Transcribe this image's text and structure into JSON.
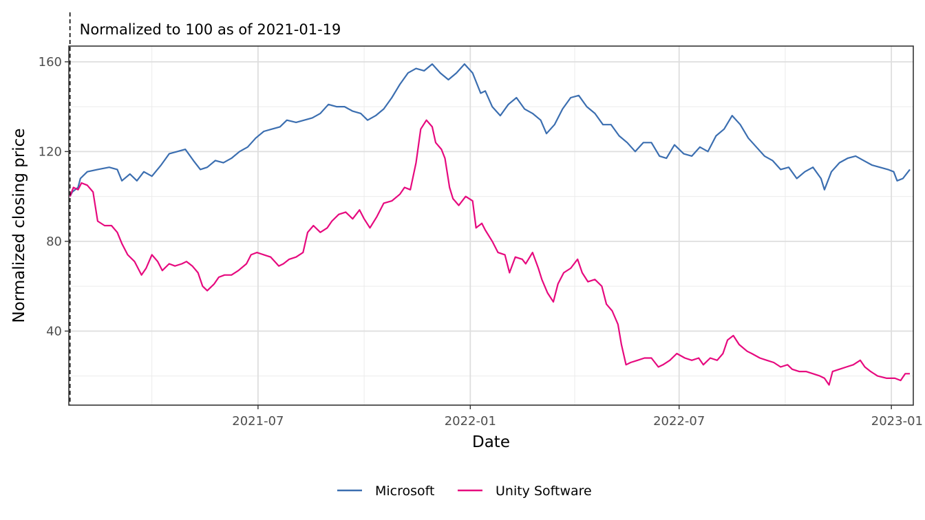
{
  "chart_data": {
    "type": "line",
    "title": "",
    "xlabel": "Date",
    "ylabel": "Normalized closing price",
    "annotation": {
      "text": "Normalized to 100 as of 2021-01-19",
      "x": "2021-01-19"
    },
    "xlim": [
      "2021-01-18",
      "2023-01-20"
    ],
    "ylim": [
      7,
      167
    ],
    "x_ticks": [
      {
        "label": "2021-07",
        "date": "2021-07-01"
      },
      {
        "label": "2022-01",
        "date": "2022-01-01"
      },
      {
        "label": "2022-07",
        "date": "2022-07-01"
      },
      {
        "label": "2023-01",
        "date": "2023-01-01"
      }
    ],
    "y_ticks": [
      40,
      80,
      120,
      160
    ],
    "grid": true,
    "legend": "bottom",
    "series": [
      {
        "name": "Microsoft",
        "color": "#3b6eb0",
        "points": [
          [
            "2021-01-19",
            100
          ],
          [
            "2021-01-21",
            102
          ],
          [
            "2021-01-26",
            104
          ],
          [
            "2021-01-28",
            108
          ],
          [
            "2021-02-03",
            111
          ],
          [
            "2021-02-12",
            112
          ],
          [
            "2021-02-22",
            113
          ],
          [
            "2021-03-01",
            112
          ],
          [
            "2021-03-05",
            107
          ],
          [
            "2021-03-12",
            110
          ],
          [
            "2021-03-18",
            107
          ],
          [
            "2021-03-24",
            111
          ],
          [
            "2021-03-31",
            109
          ],
          [
            "2021-04-08",
            114
          ],
          [
            "2021-04-15",
            119
          ],
          [
            "2021-04-22",
            120
          ],
          [
            "2021-04-29",
            121
          ],
          [
            "2021-05-06",
            116
          ],
          [
            "2021-05-12",
            112
          ],
          [
            "2021-05-18",
            113
          ],
          [
            "2021-05-25",
            116
          ],
          [
            "2021-06-01",
            115
          ],
          [
            "2021-06-08",
            117
          ],
          [
            "2021-06-15",
            120
          ],
          [
            "2021-06-22",
            122
          ],
          [
            "2021-06-29",
            126
          ],
          [
            "2021-07-06",
            129
          ],
          [
            "2021-07-13",
            130
          ],
          [
            "2021-07-20",
            131
          ],
          [
            "2021-07-26",
            134
          ],
          [
            "2021-08-03",
            133
          ],
          [
            "2021-08-10",
            134
          ],
          [
            "2021-08-17",
            135
          ],
          [
            "2021-08-24",
            137
          ],
          [
            "2021-08-31",
            141
          ],
          [
            "2021-09-07",
            140
          ],
          [
            "2021-09-14",
            140
          ],
          [
            "2021-09-21",
            138
          ],
          [
            "2021-09-28",
            137
          ],
          [
            "2021-10-04",
            134
          ],
          [
            "2021-10-11",
            136
          ],
          [
            "2021-10-18",
            139
          ],
          [
            "2021-10-25",
            144
          ],
          [
            "2021-11-01",
            150
          ],
          [
            "2021-11-08",
            155
          ],
          [
            "2021-11-15",
            157
          ],
          [
            "2021-11-22",
            156
          ],
          [
            "2021-11-29",
            159
          ],
          [
            "2021-12-06",
            155
          ],
          [
            "2021-12-13",
            152
          ],
          [
            "2021-12-20",
            155
          ],
          [
            "2021-12-27",
            159
          ],
          [
            "2022-01-03",
            155
          ],
          [
            "2022-01-10",
            146
          ],
          [
            "2022-01-14",
            147
          ],
          [
            "2022-01-20",
            140
          ],
          [
            "2022-01-27",
            136
          ],
          [
            "2022-02-03",
            141
          ],
          [
            "2022-02-10",
            144
          ],
          [
            "2022-02-17",
            139
          ],
          [
            "2022-02-24",
            137
          ],
          [
            "2022-03-03",
            134
          ],
          [
            "2022-03-08",
            128
          ],
          [
            "2022-03-15",
            132
          ],
          [
            "2022-03-22",
            139
          ],
          [
            "2022-03-29",
            144
          ],
          [
            "2022-04-05",
            145
          ],
          [
            "2022-04-12",
            140
          ],
          [
            "2022-04-19",
            137
          ],
          [
            "2022-04-26",
            132
          ],
          [
            "2022-05-03",
            132
          ],
          [
            "2022-05-10",
            127
          ],
          [
            "2022-05-17",
            124
          ],
          [
            "2022-05-24",
            120
          ],
          [
            "2022-05-31",
            124
          ],
          [
            "2022-06-07",
            124
          ],
          [
            "2022-06-14",
            118
          ],
          [
            "2022-06-20",
            117
          ],
          [
            "2022-06-27",
            123
          ],
          [
            "2022-07-05",
            119
          ],
          [
            "2022-07-12",
            118
          ],
          [
            "2022-07-19",
            122
          ],
          [
            "2022-07-26",
            120
          ],
          [
            "2022-08-02",
            127
          ],
          [
            "2022-08-09",
            130
          ],
          [
            "2022-08-16",
            136
          ],
          [
            "2022-08-23",
            132
          ],
          [
            "2022-08-30",
            126
          ],
          [
            "2022-09-06",
            122
          ],
          [
            "2022-09-13",
            118
          ],
          [
            "2022-09-20",
            116
          ],
          [
            "2022-09-27",
            112
          ],
          [
            "2022-10-04",
            113
          ],
          [
            "2022-10-11",
            108
          ],
          [
            "2022-10-18",
            111
          ],
          [
            "2022-10-25",
            113
          ],
          [
            "2022-11-01",
            108
          ],
          [
            "2022-11-04",
            103
          ],
          [
            "2022-11-10",
            111
          ],
          [
            "2022-11-17",
            115
          ],
          [
            "2022-11-24",
            117
          ],
          [
            "2022-12-01",
            118
          ],
          [
            "2022-12-08",
            116
          ],
          [
            "2022-12-15",
            114
          ],
          [
            "2022-12-22",
            113
          ],
          [
            "2022-12-29",
            112
          ],
          [
            "2023-01-03",
            111
          ],
          [
            "2023-01-06",
            107
          ],
          [
            "2023-01-11",
            108
          ],
          [
            "2023-01-17",
            112
          ]
        ]
      },
      {
        "name": "Unity Software",
        "color": "#e6097e",
        "points": [
          [
            "2021-01-19",
            100
          ],
          [
            "2021-01-22",
            104
          ],
          [
            "2021-01-26",
            103
          ],
          [
            "2021-01-29",
            106
          ],
          [
            "2021-02-03",
            105
          ],
          [
            "2021-02-08",
            102
          ],
          [
            "2021-02-12",
            89
          ],
          [
            "2021-02-18",
            87
          ],
          [
            "2021-02-24",
            87
          ],
          [
            "2021-03-01",
            84
          ],
          [
            "2021-03-05",
            79
          ],
          [
            "2021-03-10",
            74
          ],
          [
            "2021-03-16",
            71
          ],
          [
            "2021-03-22",
            65
          ],
          [
            "2021-03-26",
            68
          ],
          [
            "2021-03-31",
            74
          ],
          [
            "2021-04-05",
            71
          ],
          [
            "2021-04-09",
            67
          ],
          [
            "2021-04-15",
            70
          ],
          [
            "2021-04-20",
            69
          ],
          [
            "2021-04-26",
            70
          ],
          [
            "2021-04-30",
            71
          ],
          [
            "2021-05-05",
            69
          ],
          [
            "2021-05-10",
            66
          ],
          [
            "2021-05-14",
            60
          ],
          [
            "2021-05-18",
            58
          ],
          [
            "2021-05-24",
            61
          ],
          [
            "2021-05-28",
            64
          ],
          [
            "2021-06-02",
            65
          ],
          [
            "2021-06-08",
            65
          ],
          [
            "2021-06-14",
            67
          ],
          [
            "2021-06-21",
            70
          ],
          [
            "2021-06-25",
            74
          ],
          [
            "2021-06-30",
            75
          ],
          [
            "2021-07-06",
            74
          ],
          [
            "2021-07-12",
            73
          ],
          [
            "2021-07-19",
            69
          ],
          [
            "2021-07-23",
            70
          ],
          [
            "2021-07-28",
            72
          ],
          [
            "2021-08-03",
            73
          ],
          [
            "2021-08-09",
            75
          ],
          [
            "2021-08-13",
            84
          ],
          [
            "2021-08-18",
            87
          ],
          [
            "2021-08-24",
            84
          ],
          [
            "2021-08-30",
            86
          ],
          [
            "2021-09-03",
            89
          ],
          [
            "2021-09-09",
            92
          ],
          [
            "2021-09-15",
            93
          ],
          [
            "2021-09-21",
            90
          ],
          [
            "2021-09-27",
            94
          ],
          [
            "2021-10-01",
            90
          ],
          [
            "2021-10-06",
            86
          ],
          [
            "2021-10-12",
            91
          ],
          [
            "2021-10-18",
            97
          ],
          [
            "2021-10-25",
            98
          ],
          [
            "2021-11-01",
            101
          ],
          [
            "2021-11-05",
            104
          ],
          [
            "2021-11-10",
            103
          ],
          [
            "2021-11-15",
            115
          ],
          [
            "2021-11-19",
            130
          ],
          [
            "2021-11-24",
            134
          ],
          [
            "2021-11-29",
            131
          ],
          [
            "2021-12-02",
            124
          ],
          [
            "2021-12-07",
            121
          ],
          [
            "2021-12-10",
            117
          ],
          [
            "2021-12-14",
            104
          ],
          [
            "2021-12-17",
            99
          ],
          [
            "2021-12-22",
            96
          ],
          [
            "2021-12-28",
            100
          ],
          [
            "2022-01-03",
            98
          ],
          [
            "2022-01-06",
            86
          ],
          [
            "2022-01-11",
            88
          ],
          [
            "2022-01-14",
            85
          ],
          [
            "2022-01-20",
            80
          ],
          [
            "2022-01-25",
            75
          ],
          [
            "2022-01-31",
            74
          ],
          [
            "2022-02-04",
            66
          ],
          [
            "2022-02-09",
            73
          ],
          [
            "2022-02-15",
            72
          ],
          [
            "2022-02-18",
            70
          ],
          [
            "2022-02-24",
            75
          ],
          [
            "2022-03-01",
            68
          ],
          [
            "2022-03-04",
            63
          ],
          [
            "2022-03-09",
            57
          ],
          [
            "2022-03-14",
            53
          ],
          [
            "2022-03-18",
            61
          ],
          [
            "2022-03-23",
            66
          ],
          [
            "2022-03-29",
            68
          ],
          [
            "2022-04-04",
            72
          ],
          [
            "2022-04-08",
            66
          ],
          [
            "2022-04-13",
            62
          ],
          [
            "2022-04-19",
            63
          ],
          [
            "2022-04-25",
            60
          ],
          [
            "2022-04-29",
            52
          ],
          [
            "2022-05-04",
            49
          ],
          [
            "2022-05-09",
            43
          ],
          [
            "2022-05-12",
            34
          ],
          [
            "2022-05-16",
            25
          ],
          [
            "2022-05-20",
            26
          ],
          [
            "2022-05-26",
            27
          ],
          [
            "2022-06-01",
            28
          ],
          [
            "2022-06-07",
            28
          ],
          [
            "2022-06-13",
            24
          ],
          [
            "2022-06-17",
            25
          ],
          [
            "2022-06-23",
            27
          ],
          [
            "2022-06-29",
            30
          ],
          [
            "2022-07-06",
            28
          ],
          [
            "2022-07-12",
            27
          ],
          [
            "2022-07-18",
            28
          ],
          [
            "2022-07-22",
            25
          ],
          [
            "2022-07-28",
            28
          ],
          [
            "2022-08-03",
            27
          ],
          [
            "2022-08-08",
            30
          ],
          [
            "2022-08-12",
            36
          ],
          [
            "2022-08-17",
            38
          ],
          [
            "2022-08-22",
            34
          ],
          [
            "2022-08-29",
            31
          ],
          [
            "2022-09-02",
            30
          ],
          [
            "2022-09-09",
            28
          ],
          [
            "2022-09-15",
            27
          ],
          [
            "2022-09-21",
            26
          ],
          [
            "2022-09-27",
            24
          ],
          [
            "2022-10-03",
            25
          ],
          [
            "2022-10-07",
            23
          ],
          [
            "2022-10-13",
            22
          ],
          [
            "2022-10-19",
            22
          ],
          [
            "2022-10-25",
            21
          ],
          [
            "2022-10-31",
            20
          ],
          [
            "2022-11-04",
            19
          ],
          [
            "2022-11-08",
            16
          ],
          [
            "2022-11-11",
            22
          ],
          [
            "2022-11-17",
            23
          ],
          [
            "2022-11-23",
            24
          ],
          [
            "2022-11-29",
            25
          ],
          [
            "2022-12-05",
            27
          ],
          [
            "2022-12-09",
            24
          ],
          [
            "2022-12-14",
            22
          ],
          [
            "2022-12-20",
            20
          ],
          [
            "2022-12-28",
            19
          ],
          [
            "2023-01-04",
            19
          ],
          [
            "2023-01-09",
            18
          ],
          [
            "2023-01-13",
            21
          ],
          [
            "2023-01-17",
            21
          ]
        ]
      }
    ]
  }
}
